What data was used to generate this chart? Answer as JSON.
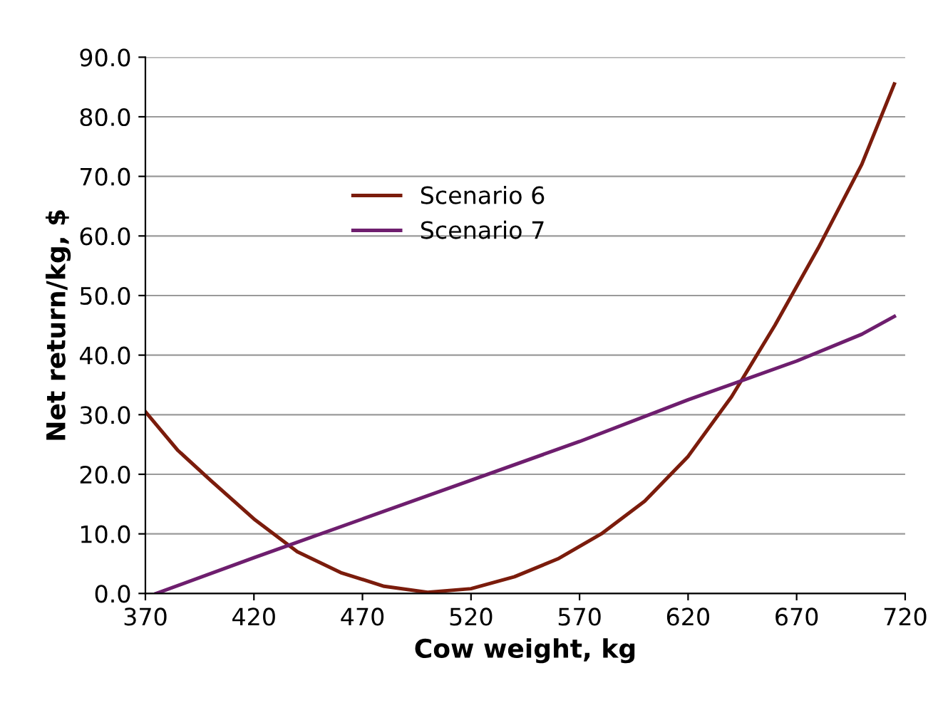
{
  "chart_data": {
    "type": "line",
    "xlabel": "Cow weight, kg",
    "ylabel": "Net return/kg, $",
    "xlim": [
      370,
      720
    ],
    "xticks": [
      370,
      420,
      470,
      520,
      570,
      620,
      670,
      720
    ],
    "ylim": [
      0,
      90
    ],
    "yticks": [
      {
        "value": 0,
        "label": "0.0"
      },
      {
        "value": 10,
        "label": "10.0"
      },
      {
        "value": 20,
        "label": "20.0"
      },
      {
        "value": 30,
        "label": "30.0"
      },
      {
        "value": 40,
        "label": "40.0"
      },
      {
        "value": 50,
        "label": "50.0"
      },
      {
        "value": 60,
        "label": "60.0"
      },
      {
        "value": 70,
        "label": "70.0"
      },
      {
        "value": 80,
        "label": "80.0"
      },
      {
        "value": 90,
        "label": "90.0"
      }
    ],
    "grid": "y",
    "legend": "top",
    "line_style": "solid",
    "series": [
      {
        "name": "Scenario 6",
        "color": "#7b1c0c",
        "x": [
          370,
          385,
          400,
          420,
          440,
          460,
          480,
          500,
          520,
          540,
          560,
          580,
          600,
          620,
          640,
          660,
          680,
          700,
          715
        ],
        "values": [
          30.5,
          24,
          19,
          12.5,
          7,
          3.5,
          1.2,
          0.2,
          0.8,
          2.8,
          5.8,
          10,
          15.5,
          23,
          33,
          45,
          58,
          72,
          85.5
        ]
      },
      {
        "name": "Scenario 7",
        "color": "#6e1e6e",
        "x": [
          375,
          420,
          470,
          520,
          570,
          620,
          670,
          700,
          715
        ],
        "values": [
          0,
          6,
          12.5,
          19,
          25.5,
          32.5,
          39,
          43.5,
          46.5
        ]
      }
    ]
  }
}
